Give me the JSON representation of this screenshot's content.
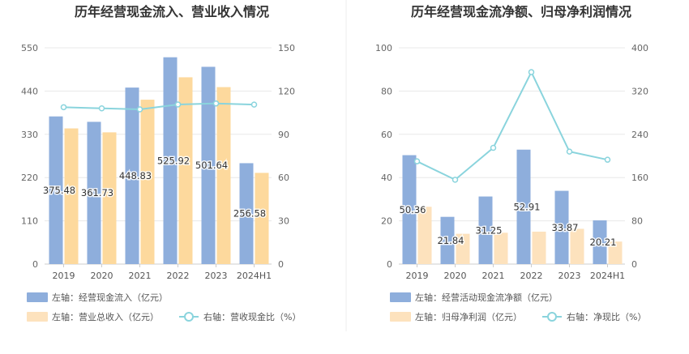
{
  "chart_data": [
    {
      "type": "bar",
      "title": "历年经营现金流入、营业收入情况",
      "categories": [
        "2019",
        "2020",
        "2021",
        "2022",
        "2023",
        "2024H1"
      ],
      "left_axis": {
        "min": 0,
        "max": 550,
        "ticks": [
          "0",
          "110",
          "220",
          "330",
          "440",
          "550"
        ]
      },
      "right_axis": {
        "min": 0,
        "max": 150,
        "ticks": [
          "0",
          "30",
          "60",
          "90",
          "120",
          "150"
        ]
      },
      "series": [
        {
          "name": "左轴：经营现金流入（亿元）",
          "axis": "left",
          "kind": "bar",
          "color": "#8eaedc",
          "values": [
            375.48,
            361.73,
            448.83,
            525.92,
            501.64,
            256.58
          ],
          "labels": [
            "375.48",
            "361.73",
            "448.83",
            "525.92",
            "501.64",
            "256.58"
          ]
        },
        {
          "name": "左轴：营业总收入（亿元）",
          "axis": "left",
          "kind": "bar",
          "color": "#fdd99d",
          "values": [
            345,
            335,
            418,
            475,
            450,
            232
          ]
        },
        {
          "name": "右轴：营收现金比（%）",
          "axis": "right",
          "kind": "line",
          "color": "#8ad4dd",
          "values": [
            108.8,
            108.0,
            107.3,
            110.7,
            111.4,
            110.6
          ]
        }
      ]
    },
    {
      "type": "bar",
      "title": "历年经营现金流净额、归母净利润情况",
      "categories": [
        "2019",
        "2020",
        "2021",
        "2022",
        "2023",
        "2024H1"
      ],
      "left_axis": {
        "min": 0,
        "max": 100,
        "ticks": [
          "0",
          "20",
          "40",
          "60",
          "80",
          "100"
        ]
      },
      "right_axis": {
        "min": 0,
        "max": 400,
        "ticks": [
          "0",
          "80",
          "160",
          "240",
          "320",
          "400"
        ]
      },
      "series": [
        {
          "name": "左轴：经营活动现金流净额（亿元）",
          "axis": "left",
          "kind": "bar",
          "color": "#8eaedc",
          "values": [
            50.36,
            21.84,
            31.25,
            52.91,
            33.87,
            20.21
          ],
          "labels": [
            "50.36",
            "21.84",
            "31.25",
            "52.91",
            "33.87",
            "20.21"
          ]
        },
        {
          "name": "左轴：归母净利润（亿元）",
          "axis": "left",
          "kind": "bar",
          "color": "#fde2bd",
          "values": [
            26.5,
            14.0,
            14.5,
            15.0,
            16.3,
            10.4
          ]
        },
        {
          "name": "右轴：净现比（%）",
          "axis": "right",
          "kind": "line",
          "color": "#8ad4dd",
          "values": [
            190,
            156,
            215,
            355,
            208,
            193
          ]
        }
      ]
    }
  ]
}
